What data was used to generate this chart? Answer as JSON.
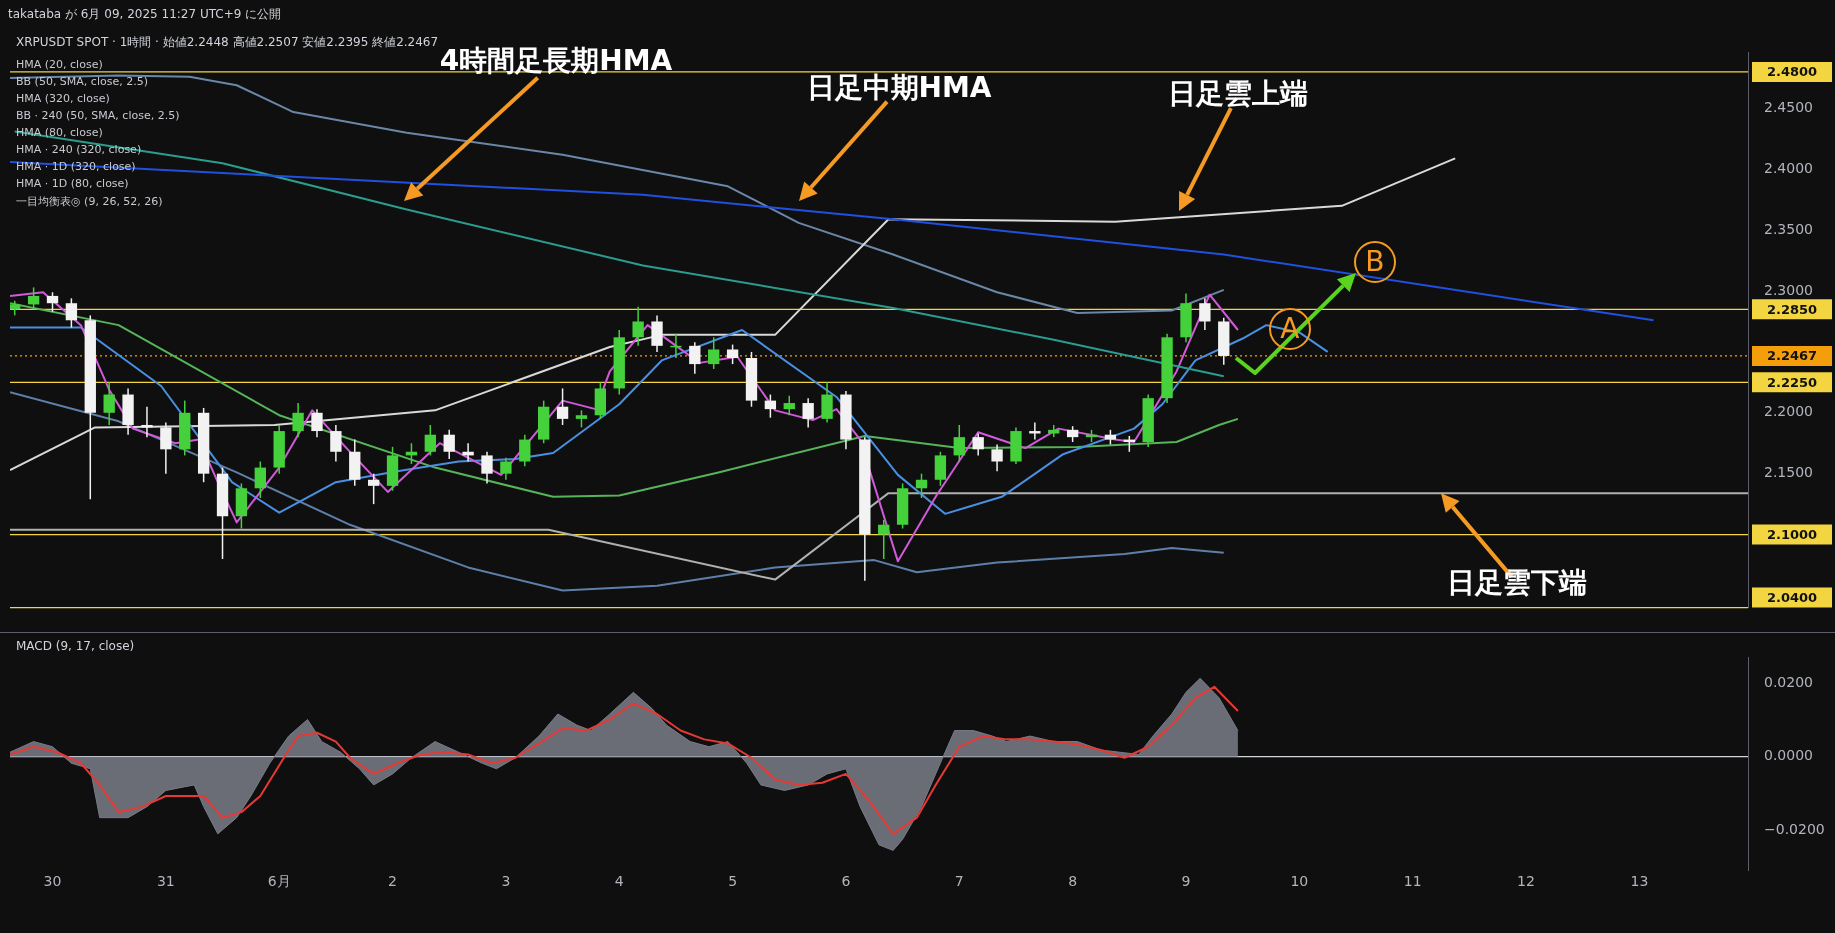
{
  "chart_data": [
    {
      "type": "candlestick",
      "title": "XRPUSDT SPOT · 1時間 · 始値2.2448 高値2.2507 安値2.2395 終値2.2467",
      "subtitle": "takataba が 6月 09, 2025 11:27 UTC+9 に公開",
      "x": [
        "2025-05-29T16:00",
        "2025-05-29T20:00",
        "2025-05-30T00:00",
        "2025-05-30T04:00",
        "2025-05-30T08:00",
        "2025-05-30T12:00",
        "2025-05-30T16:00",
        "2025-05-30T20:00",
        "2025-05-31T00:00",
        "2025-05-31T04:00",
        "2025-05-31T08:00",
        "2025-05-31T12:00",
        "2025-05-31T16:00",
        "2025-05-31T20:00",
        "2025-06-01T00:00",
        "2025-06-01T04:00",
        "2025-06-01T08:00",
        "2025-06-01T12:00",
        "2025-06-01T16:00",
        "2025-06-01T20:00",
        "2025-06-02T00:00",
        "2025-06-02T04:00",
        "2025-06-02T08:00",
        "2025-06-02T12:00",
        "2025-06-02T16:00",
        "2025-06-02T20:00",
        "2025-06-03T00:00",
        "2025-06-03T04:00",
        "2025-06-03T08:00",
        "2025-06-03T12:00",
        "2025-06-03T16:00",
        "2025-06-03T20:00",
        "2025-06-04T00:00",
        "2025-06-04T04:00",
        "2025-06-04T08:00",
        "2025-06-04T12:00",
        "2025-06-04T16:00",
        "2025-06-04T20:00",
        "2025-06-05T00:00",
        "2025-06-05T04:00",
        "2025-06-05T08:00",
        "2025-06-05T12:00",
        "2025-06-05T16:00",
        "2025-06-05T20:00",
        "2025-06-06T00:00",
        "2025-06-06T04:00",
        "2025-06-06T08:00",
        "2025-06-06T12:00",
        "2025-06-06T16:00",
        "2025-06-06T20:00",
        "2025-06-07T00:00",
        "2025-06-07T04:00",
        "2025-06-07T08:00",
        "2025-06-07T12:00",
        "2025-06-07T16:00",
        "2025-06-07T20:00",
        "2025-06-08T00:00",
        "2025-06-08T04:00",
        "2025-06-08T08:00",
        "2025-06-08T12:00",
        "2025-06-08T16:00",
        "2025-06-08T20:00",
        "2025-06-09T00:00",
        "2025-06-09T04:00",
        "2025-06-09T08:00"
      ],
      "ohlc": [
        [
          2.285,
          2.292,
          2.28,
          2.289
        ],
        [
          2.289,
          2.303,
          2.285,
          2.296
        ],
        [
          2.296,
          2.299,
          2.283,
          2.29
        ],
        [
          2.29,
          2.294,
          2.27,
          2.276
        ],
        [
          2.276,
          2.28,
          2.129,
          2.2
        ],
        [
          2.2,
          2.225,
          2.19,
          2.215
        ],
        [
          2.215,
          2.22,
          2.182,
          2.19
        ],
        [
          2.19,
          2.205,
          2.18,
          2.188
        ],
        [
          2.188,
          2.192,
          2.15,
          2.17
        ],
        [
          2.17,
          2.21,
          2.165,
          2.2
        ],
        [
          2.2,
          2.204,
          2.143,
          2.15
        ],
        [
          2.15,
          2.155,
          2.08,
          2.115
        ],
        [
          2.115,
          2.142,
          2.105,
          2.138
        ],
        [
          2.138,
          2.16,
          2.13,
          2.155
        ],
        [
          2.155,
          2.19,
          2.15,
          2.185
        ],
        [
          2.185,
          2.208,
          2.18,
          2.2
        ],
        [
          2.2,
          2.203,
          2.18,
          2.185
        ],
        [
          2.185,
          2.19,
          2.16,
          2.168
        ],
        [
          2.168,
          2.178,
          2.14,
          2.145
        ],
        [
          2.145,
          2.15,
          2.125,
          2.14
        ],
        [
          2.14,
          2.172,
          2.136,
          2.165
        ],
        [
          2.165,
          2.175,
          2.158,
          2.168
        ],
        [
          2.168,
          2.19,
          2.165,
          2.182
        ],
        [
          2.182,
          2.186,
          2.162,
          2.168
        ],
        [
          2.168,
          2.175,
          2.16,
          2.165
        ],
        [
          2.165,
          2.168,
          2.142,
          2.15
        ],
        [
          2.15,
          2.163,
          2.145,
          2.16
        ],
        [
          2.16,
          2.182,
          2.156,
          2.178
        ],
        [
          2.178,
          2.21,
          2.175,
          2.205
        ],
        [
          2.205,
          2.22,
          2.19,
          2.195
        ],
        [
          2.195,
          2.202,
          2.188,
          2.198
        ],
        [
          2.198,
          2.225,
          2.195,
          2.22
        ],
        [
          2.22,
          2.268,
          2.215,
          2.262
        ],
        [
          2.262,
          2.287,
          2.255,
          2.275
        ],
        [
          2.275,
          2.28,
          2.25,
          2.255
        ],
        [
          2.255,
          2.265,
          2.245,
          2.255
        ],
        [
          2.255,
          2.258,
          2.232,
          2.24
        ],
        [
          2.24,
          2.262,
          2.236,
          2.252
        ],
        [
          2.252,
          2.256,
          2.24,
          2.245
        ],
        [
          2.245,
          2.25,
          2.205,
          2.21
        ],
        [
          2.21,
          2.215,
          2.196,
          2.203
        ],
        [
          2.203,
          2.214,
          2.198,
          2.208
        ],
        [
          2.208,
          2.212,
          2.188,
          2.195
        ],
        [
          2.195,
          2.225,
          2.192,
          2.215
        ],
        [
          2.215,
          2.218,
          2.17,
          2.178
        ],
        [
          2.178,
          2.18,
          2.062,
          2.1
        ],
        [
          2.1,
          2.112,
          2.08,
          2.108
        ],
        [
          2.108,
          2.142,
          2.105,
          2.138
        ],
        [
          2.138,
          2.15,
          2.13,
          2.145
        ],
        [
          2.145,
          2.168,
          2.14,
          2.165
        ],
        [
          2.165,
          2.19,
          2.16,
          2.18
        ],
        [
          2.18,
          2.183,
          2.165,
          2.17
        ],
        [
          2.17,
          2.174,
          2.152,
          2.16
        ],
        [
          2.16,
          2.188,
          2.158,
          2.185
        ],
        [
          2.185,
          2.192,
          2.178,
          2.183
        ],
        [
          2.183,
          2.19,
          2.18,
          2.186
        ],
        [
          2.186,
          2.189,
          2.176,
          2.18
        ],
        [
          2.18,
          2.186,
          2.176,
          2.182
        ],
        [
          2.182,
          2.186,
          2.174,
          2.178
        ],
        [
          2.178,
          2.181,
          2.168,
          2.176
        ],
        [
          2.176,
          2.215,
          2.172,
          2.212
        ],
        [
          2.212,
          2.265,
          2.208,
          2.262
        ],
        [
          2.262,
          2.298,
          2.258,
          2.29
        ],
        [
          2.29,
          2.294,
          2.268,
          2.275
        ],
        [
          2.275,
          2.278,
          2.2395,
          2.2467
        ]
      ],
      "series": [
        {
          "type": "line",
          "color": "#5d7fa8",
          "x": [
            "2025-05-29T15:00",
            "2025-05-30T14:00",
            "2025-05-31T15:00",
            "2025-06-01T15:00",
            "2025-06-02T16:00",
            "2025-06-03T12:00",
            "2025-06-04T08:00",
            "2025-06-05T09:00",
            "2025-06-06T06:00",
            "2025-06-06T15:00",
            "2025-06-07T08:00",
            "2025-06-08T11:00",
            "2025-06-08T21:00",
            "2025-06-09T08:00"
          ],
          "values": [
            2.217,
            2.193,
            2.151,
            2.108,
            2.073,
            2.054,
            2.058,
            2.073,
            2.079,
            2.069,
            2.077,
            2.084,
            2.089,
            2.085
          ]
        },
        {
          "type": "line",
          "color": "#6a86a8",
          "x": [
            "2025-05-29T15:00",
            "2025-05-30T14:00",
            "2025-05-31T05:00",
            "2025-05-31T15:00",
            "2025-06-01T03:00",
            "2025-06-02T03:00",
            "2025-06-03T12:00",
            "2025-06-04T23:00",
            "2025-06-05T14:00",
            "2025-06-06T10:00",
            "2025-06-07T08:00",
            "2025-06-08T01:00",
            "2025-06-08T21:00",
            "2025-06-09T08:00"
          ],
          "values": [
            2.475,
            2.477,
            2.476,
            2.469,
            2.447,
            2.43,
            2.412,
            2.386,
            2.356,
            2.33,
            2.299,
            2.282,
            2.284,
            2.301
          ]
        },
        {
          "type": "line",
          "color": "#d9d9d9",
          "x": [
            "2025-05-29T15:00",
            "2025-05-30T09:00",
            "2025-05-31T23:00",
            "2025-06-02T09:00",
            "2025-06-03T22:00",
            "2025-06-04T09:00",
            "2025-06-05T09:00",
            "2025-06-06T09:00",
            "2025-06-08T09:00",
            "2025-06-10T09:00",
            "2025-06-11T09:00"
          ],
          "values": [
            2.153,
            2.188,
            2.19,
            2.202,
            2.254,
            2.264,
            2.264,
            2.359,
            2.357,
            2.37,
            2.409
          ]
        },
        {
          "type": "line",
          "color": "#b0b0b0",
          "x": [
            "2025-05-29T15:00",
            "2025-06-03T09:00",
            "2025-06-05T09:00",
            "2025-06-06T09:00",
            "2025-06-13T23:00"
          ],
          "values": [
            2.104,
            2.104,
            2.063,
            2.134,
            2.134
          ]
        },
        {
          "type": "line",
          "color": "#56b45a",
          "x": [
            "2025-05-29T15:00",
            "2025-05-30T14:00",
            "2025-06-01T00:00",
            "2025-06-02T09:00",
            "2025-06-03T10:00",
            "2025-06-04T00:00",
            "2025-06-04T21:00",
            "2025-06-06T04:00",
            "2025-06-07T00:00",
            "2025-06-08T01:00",
            "2025-06-08T22:00",
            "2025-06-09T07:00",
            "2025-06-09T11:00"
          ],
          "values": [
            2.29,
            2.272,
            2.198,
            2.155,
            2.131,
            2.132,
            2.151,
            2.181,
            2.171,
            2.172,
            2.176,
            2.19,
            2.195
          ]
        },
        {
          "type": "line",
          "color": "#4a90e2",
          "x": [
            "2025-05-29T15:00",
            "2025-05-30T06:00",
            "2025-05-30T23:00",
            "2025-05-31T14:00",
            "2025-06-01T00:00",
            "2025-06-01T12:00",
            "2025-06-02T01:00",
            "2025-06-02T14:00",
            "2025-06-03T02:00",
            "2025-06-03T10:00",
            "2025-06-04T00:00",
            "2025-06-04T09:00",
            "2025-06-05T02:00",
            "2025-06-05T22:00",
            "2025-06-06T11:00",
            "2025-06-06T21:00",
            "2025-06-07T09:00",
            "2025-06-07T22:00",
            "2025-06-08T13:00",
            "2025-06-08T19:00",
            "2025-06-09T02:00",
            "2025-06-09T12:00",
            "2025-06-09T17:00",
            "2025-06-10T00:00",
            "2025-06-10T06:00"
          ],
          "values": [
            2.27,
            2.27,
            2.222,
            2.143,
            2.118,
            2.143,
            2.152,
            2.16,
            2.162,
            2.167,
            2.207,
            2.243,
            2.268,
            2.213,
            2.149,
            2.117,
            2.131,
            2.166,
            2.187,
            2.207,
            2.243,
            2.261,
            2.272,
            2.266,
            2.25
          ]
        },
        {
          "type": "line",
          "color": "#d05ad8",
          "x": [
            "2025-05-29T15:00",
            "2025-05-29T22:00",
            "2025-05-30T06:00",
            "2025-05-30T12:00",
            "2025-05-30T17:00",
            "2025-05-31T02:00",
            "2025-05-31T07:00",
            "2025-05-31T11:00",
            "2025-05-31T15:00",
            "2025-06-01T00:00",
            "2025-06-01T07:00",
            "2025-06-01T14:00",
            "2025-06-01T23:00",
            "2025-06-02T10:00",
            "2025-06-02T23:00",
            "2025-06-03T12:00",
            "2025-06-03T19:00",
            "2025-06-03T22:00",
            "2025-06-04T06:00",
            "2025-06-04T17:00",
            "2025-06-05T01:00",
            "2025-06-05T09:00",
            "2025-06-05T17:00",
            "2025-06-05T22:00",
            "2025-06-06T03:00",
            "2025-06-06T11:00",
            "2025-06-06T19:00",
            "2025-06-07T04:00",
            "2025-06-07T14:00",
            "2025-06-07T21:00",
            "2025-06-08T09:00",
            "2025-06-08T13:00",
            "2025-06-08T22:00",
            "2025-06-09T05:00",
            "2025-06-09T11:00"
          ],
          "values": [
            2.296,
            2.299,
            2.272,
            2.219,
            2.187,
            2.175,
            2.178,
            2.143,
            2.11,
            2.155,
            2.202,
            2.172,
            2.135,
            2.175,
            2.149,
            2.21,
            2.203,
            2.234,
            2.272,
            2.241,
            2.246,
            2.202,
            2.194,
            2.203,
            2.178,
            2.078,
            2.131,
            2.184,
            2.171,
            2.187,
            2.178,
            2.176,
            2.234,
            2.297,
            2.268
          ]
        },
        {
          "type": "line",
          "color": "#2a9d8f",
          "x": [
            "2025-05-29T16:00",
            "2025-05-31T12:00",
            "2025-06-02T03:00",
            "2025-06-04T05:00",
            "2025-06-06T10:00",
            "2025-06-07T20:00",
            "2025-06-09T08:00"
          ],
          "values": [
            2.431,
            2.405,
            2.367,
            2.321,
            2.286,
            2.26,
            2.23
          ]
        },
        {
          "type": "line",
          "color": "#2050e0",
          "x": [
            "2025-05-29T15:00",
            "2025-06-04T05:00",
            "2025-06-06T10:00",
            "2025-06-09T08:00",
            "2025-06-13T03:00"
          ],
          "values": [
            2.406,
            2.379,
            2.359,
            2.33,
            2.276
          ]
        }
      ],
      "xlim": [
        "2025-05-29T15:00",
        "2025-06-13T23:00"
      ],
      "ylim": [
        2.04,
        2.496
      ],
      "yticks": [
        {
          "value": 2.45,
          "label": "2.4500"
        },
        {
          "value": 2.4,
          "label": "2.4000"
        },
        {
          "value": 2.35,
          "label": "2.3500"
        },
        {
          "value": 2.3,
          "label": "2.3000"
        },
        {
          "value": 2.2,
          "label": "2.2000"
        },
        {
          "value": 2.15,
          "label": "2.1500"
        }
      ],
      "tick_labels": "y",
      "marker": "none",
      "ref_lines": [
        {
          "axis": "y",
          "value": 2.48,
          "label": "2.4800",
          "color": "#f2d541"
        },
        {
          "axis": "y",
          "value": 2.285,
          "label": "2.2850",
          "color": "#f2d541"
        },
        {
          "axis": "y",
          "value": 2.2467,
          "label": "2.2467",
          "color": "#f59e0b",
          "line_style": "dotted"
        },
        {
          "axis": "y",
          "value": 2.225,
          "label": "2.2250",
          "color": "#f2d541"
        },
        {
          "axis": "y",
          "value": 2.1,
          "label": "2.1000",
          "color": "#f2d541"
        },
        {
          "axis": "y",
          "value": 2.04,
          "label": "2.0400",
          "color": "#f2d541"
        }
      ],
      "annotations": [
        "HMA (20, close)",
        "BB (50, SMA, close, 2.5)",
        "HMA (320, close)",
        "BB · 240 (50, SMA, close, 2.5)",
        "HMA (80, close)",
        "HMA · 240 (320, close)",
        "HMA · 1D (320, close)",
        "HMA · 1D (80, close)",
        "一目均衡表◎ (9, 26, 52, 26)",
        "4時間足長期HMA",
        "日足中期HMA",
        "日足雲上端",
        {
          "text": "日足雲下端",
          "x": "2025-06-11T06:00",
          "y": 2.134
        },
        {
          "text": "A",
          "x": "2025-06-09T22:00",
          "y": 2.269
        },
        {
          "text": "B",
          "x": "2025-06-10T16:00",
          "y": 2.324
        }
      ]
    },
    {
      "type": "area",
      "title": "MACD (9, 17, close)",
      "series": [
        {
          "type": "area",
          "color": "#787b86",
          "x": [
            "2025-05-29T15:00",
            "2025-05-29T20:00",
            "2025-05-30T00:00",
            "2025-05-30T04:00",
            "2025-05-30T08:00",
            "2025-05-30T10:00",
            "2025-05-30T16:00",
            "2025-05-30T20:00",
            "2025-05-31T00:00",
            "2025-05-31T06:00",
            "2025-05-31T08:00",
            "2025-05-31T11:00",
            "2025-05-31T15:00",
            "2025-05-31T18:00",
            "2025-05-31T22:00",
            "2025-06-01T02:00",
            "2025-06-01T06:00",
            "2025-06-01T09:00",
            "2025-06-01T13:00",
            "2025-06-01T17:00",
            "2025-06-01T20:00",
            "2025-06-02T00:00",
            "2025-06-02T04:00",
            "2025-06-02T09:00",
            "2025-06-02T14:00",
            "2025-06-02T19:00",
            "2025-06-02T22:00",
            "2025-06-03T02:00",
            "2025-06-03T07:00",
            "2025-06-03T11:00",
            "2025-06-03T15:00",
            "2025-06-03T18:00",
            "2025-06-03T22:00",
            "2025-06-04T03:00",
            "2025-06-04T07:00",
            "2025-06-04T10:00",
            "2025-06-04T15:00",
            "2025-06-04T19:00",
            "2025-06-04T23:00",
            "2025-06-05T03:00",
            "2025-06-05T06:00",
            "2025-06-05T11:00",
            "2025-06-05T16:00",
            "2025-06-05T20:00",
            "2025-06-06T00:00",
            "2025-06-06T03:00",
            "2025-06-06T07:00",
            "2025-06-06T10:00",
            "2025-06-06T12:00",
            "2025-06-06T16:00",
            "2025-06-06T19:00",
            "2025-06-06T23:00",
            "2025-06-07T03:00",
            "2025-06-07T07:00",
            "2025-06-07T10:00",
            "2025-06-07T15:00",
            "2025-06-07T20:00",
            "2025-06-08T01:00",
            "2025-06-08T06:00",
            "2025-06-08T10:00",
            "2025-06-08T14:00",
            "2025-06-08T17:00",
            "2025-06-08T21:00",
            "2025-06-09T00:00",
            "2025-06-09T03:00",
            "2025-06-09T07:00",
            "2025-06-09T11:00"
          ],
          "values": [
            0.0012,
            0.0041,
            0.0027,
            -0.0018,
            -0.0033,
            -0.0166,
            -0.0166,
            -0.0136,
            -0.0092,
            -0.0077,
            -0.0136,
            -0.021,
            -0.0166,
            -0.0107,
            -0.0018,
            0.0056,
            0.0101,
            0.0041,
            0.0012,
            -0.0033,
            -0.0077,
            -0.0047,
            -0.0003,
            0.0041,
            0.0012,
            -0.0018,
            -0.0033,
            -0.0003,
            0.0056,
            0.0116,
            0.0086,
            0.0071,
            0.0116,
            0.0175,
            0.013,
            0.0086,
            0.0041,
            0.0027,
            0.0041,
            -0.0018,
            -0.0077,
            -0.0092,
            -0.0077,
            -0.0047,
            -0.0033,
            -0.0136,
            -0.024,
            -0.0255,
            -0.0225,
            -0.0136,
            -0.0047,
            0.0071,
            0.0071,
            0.0056,
            0.0041,
            0.0056,
            0.0041,
            0.0041,
            0.0018,
            0.0012,
            0.0006,
            0.0056,
            0.0116,
            0.0175,
            0.0213,
            0.016,
            0.0071
          ]
        },
        {
          "type": "line",
          "color": "#e53935",
          "x": [
            "2025-05-29T15:00",
            "2025-05-29T20:00",
            "2025-05-30T01:00",
            "2025-05-30T06:00",
            "2025-05-30T10:00",
            "2025-05-30T14:00",
            "2025-05-30T19:00",
            "2025-05-31T00:00",
            "2025-05-31T05:00",
            "2025-05-31T08:00",
            "2025-05-31T12:00",
            "2025-05-31T16:00",
            "2025-05-31T20:00",
            "2025-06-01T01:00",
            "2025-06-01T04:00",
            "2025-06-01T08:00",
            "2025-06-01T12:00",
            "2025-06-01T15:00",
            "2025-06-01T20:00",
            "2025-06-02T01:00",
            "2025-06-02T06:00",
            "2025-06-02T11:00",
            "2025-06-02T16:00",
            "2025-06-02T21:00",
            "2025-06-03T02:00",
            "2025-06-03T07:00",
            "2025-06-03T12:00",
            "2025-06-03T17:00",
            "2025-06-03T22:00",
            "2025-06-04T03:00",
            "2025-06-04T08:00",
            "2025-06-04T13:00",
            "2025-06-04T18:00",
            "2025-06-04T23:00",
            "2025-06-05T04:00",
            "2025-06-05T09:00",
            "2025-06-05T14:00",
            "2025-06-05T19:00",
            "2025-06-06T00:00",
            "2025-06-06T05:00",
            "2025-06-06T10:00",
            "2025-06-06T15:00",
            "2025-06-06T19:00",
            "2025-06-07T00:00",
            "2025-06-07T05:00",
            "2025-06-07T10:00",
            "2025-06-07T15:00",
            "2025-06-07T20:00",
            "2025-06-08T01:00",
            "2025-06-08T06:00",
            "2025-06-08T11:00",
            "2025-06-08T16:00",
            "2025-06-08T21:00",
            "2025-06-09T02:00",
            "2025-06-09T06:00",
            "2025-06-09T11:00"
          ],
          "values": [
            0.0006,
            0.0027,
            0.0012,
            -0.0018,
            -0.0077,
            -0.0151,
            -0.0136,
            -0.0107,
            -0.0107,
            -0.0107,
            -0.0166,
            -0.0151,
            -0.0107,
            -0.0003,
            0.0056,
            0.0065,
            0.0041,
            -0.0003,
            -0.0047,
            -0.0018,
            0.0006,
            0.0012,
            0.0006,
            -0.0018,
            -0.0003,
            0.0036,
            0.0077,
            0.0071,
            0.0101,
            0.0145,
            0.0116,
            0.0071,
            0.0047,
            0.0036,
            -0.0003,
            -0.0062,
            -0.0077,
            -0.0071,
            -0.0047,
            -0.0121,
            -0.021,
            -0.0166,
            -0.0077,
            0.0027,
            0.0056,
            0.0047,
            0.0047,
            0.0041,
            0.0033,
            0.0018,
            -0.0003,
            0.0027,
            0.0086,
            0.016,
            0.019,
            0.0124
          ]
        }
      ],
      "xlim": [
        "2025-05-29T15:00",
        "2025-06-13T23:00"
      ],
      "ylim": [
        -0.031,
        0.027
      ],
      "xticks": [
        {
          "value": "2025-05-30",
          "label": "30"
        },
        {
          "value": "2025-05-31",
          "label": "31"
        },
        {
          "value": "2025-06-01",
          "label": "6月"
        },
        {
          "value": "2025-06-02",
          "label": "2"
        },
        {
          "value": "2025-06-03",
          "label": "3"
        },
        {
          "value": "2025-06-04",
          "label": "4"
        },
        {
          "value": "2025-06-05",
          "label": "5"
        },
        {
          "value": "2025-06-06",
          "label": "6"
        },
        {
          "value": "2025-06-07",
          "label": "7"
        },
        {
          "value": "2025-06-08",
          "label": "8"
        },
        {
          "value": "2025-06-09",
          "label": "9"
        },
        {
          "value": "2025-06-10",
          "label": "10"
        },
        {
          "value": "2025-06-11",
          "label": "11"
        },
        {
          "value": "2025-06-12",
          "label": "12"
        },
        {
          "value": "2025-06-13",
          "label": "13"
        }
      ],
      "yticks": [
        {
          "value": 0.02,
          "label": "0.0200"
        },
        {
          "value": 0,
          "label": "0.0000"
        },
        {
          "value": -0.02,
          "label": "−0.0200"
        }
      ],
      "marker": "none",
      "ref_lines": [
        {
          "axis": "y",
          "value": 0,
          "color": "#d1d4dc"
        }
      ]
    }
  ]
}
